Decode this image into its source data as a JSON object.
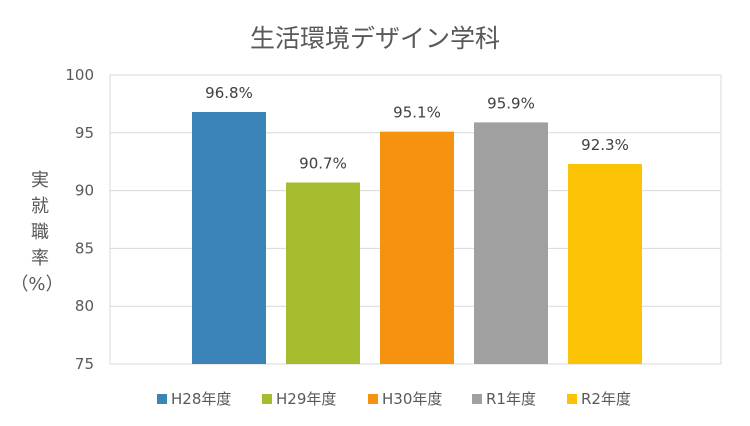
{
  "chart_data": {
    "type": "bar",
    "title": "生活環境デザイン学科",
    "ylabel": "実就職率（%）",
    "ylabel_parts": [
      "実",
      "就",
      "職",
      "率",
      "（%）"
    ],
    "xlabel": "",
    "ylim": [
      75,
      100
    ],
    "yticks": [
      75,
      80,
      85,
      90,
      95,
      100
    ],
    "grid": true,
    "legend_position": "bottom",
    "categories": [
      "H28年度",
      "H29年度",
      "H30年度",
      "R1年度",
      "R2年度"
    ],
    "values": [
      96.8,
      90.7,
      95.1,
      95.9,
      92.3
    ],
    "data_labels": [
      "96.8%",
      "90.7%",
      "95.1%",
      "95.9%",
      "92.3%"
    ],
    "colors": [
      "#3b84b8",
      "#a6bb2e",
      "#f5920f",
      "#a0a0a0",
      "#fcc205"
    ]
  }
}
